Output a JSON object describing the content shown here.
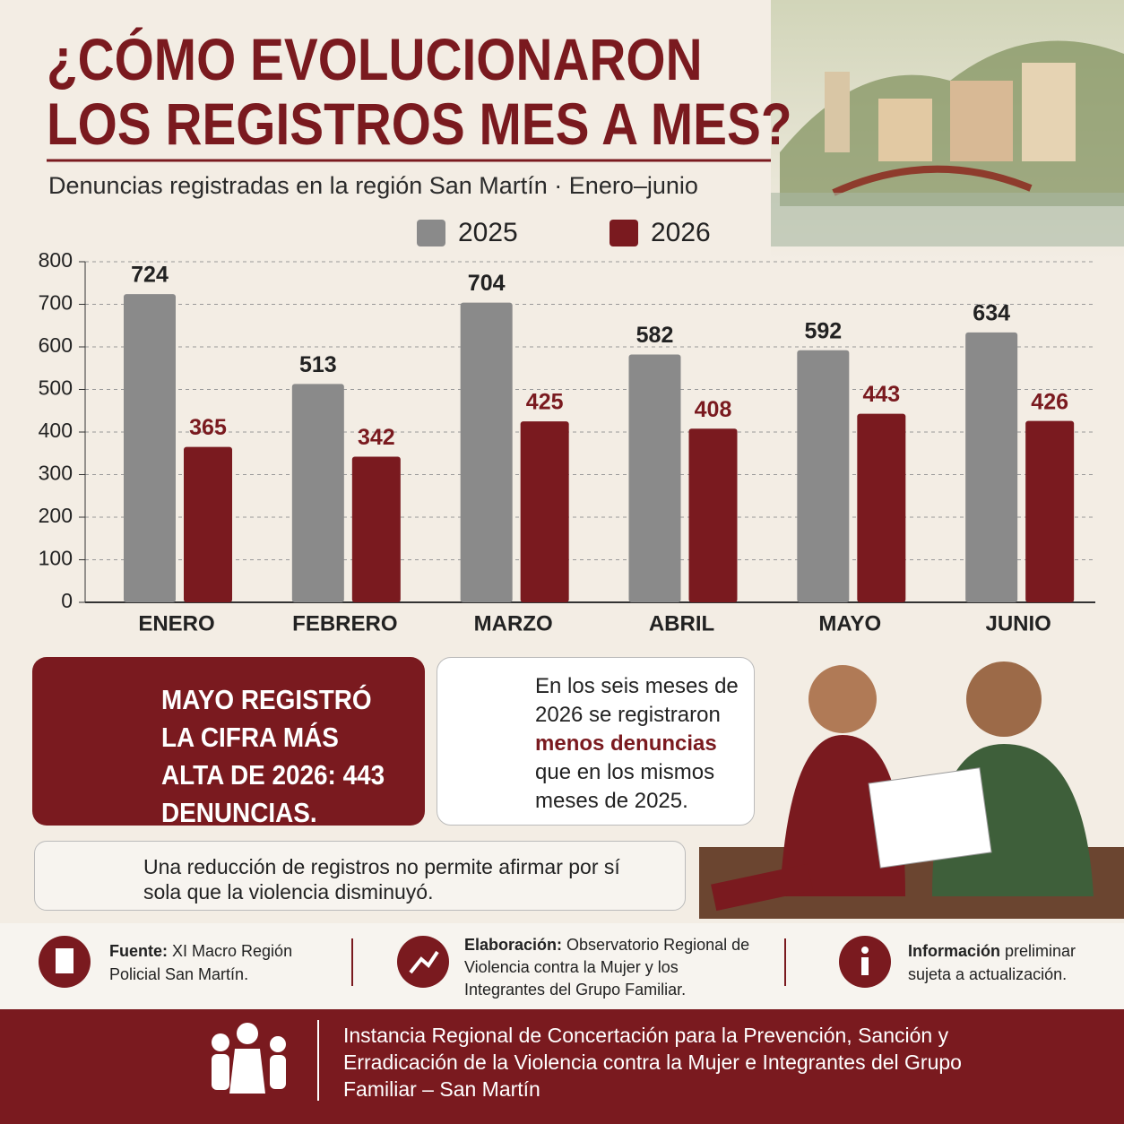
{
  "chart_data": {
    "type": "bar",
    "title": [
      "¿CÓMO EVOLUCIONARON",
      "LOS REGISTROS MES A MES?"
    ],
    "subtitle": "Denuncias registradas en la región San Martín · Enero–junio",
    "categories": [
      "ENERO",
      "FEBRERO",
      "MARZO",
      "ABRIL",
      "MAYO",
      "JUNIO"
    ],
    "series": [
      {
        "name": "2025",
        "color": "#8a8a8a",
        "values": [
          724,
          513,
          704,
          582,
          592,
          634
        ]
      },
      {
        "name": "2026",
        "color": "#7a1a1f",
        "values": [
          365,
          342,
          425,
          408,
          443,
          426
        ]
      }
    ],
    "ylim": [
      0,
      800
    ],
    "yticks": [
      0,
      100,
      200,
      300,
      400,
      500,
      600,
      700,
      800
    ],
    "grid": true
  },
  "callouts": [
    {
      "text": "MAYO REGISTRÓ LA CIFRA MÁS ALTA DE 2026: 443 DENUNCIAS."
    },
    {
      "parts": [
        "En los seis meses de 2026 se registraron ",
        "menos denuncias",
        " que en los mismos meses de 2025."
      ]
    },
    {
      "text": "Una reducción de registros no permite afirmar por sí sola que la violencia disminuyó."
    }
  ],
  "footer": [
    {
      "label": "Fuente:",
      "text": "XI Macro Región Policial San Martín."
    },
    {
      "label": "Elaboración:",
      "text": "Observatorio Regional de Violencia contra la Mujer y los Integrantes del Grupo Familiar."
    },
    {
      "label": "Información",
      "text": "preliminar sujeta a actualización."
    }
  ],
  "institution": "Instancia Regional de Concertación para la Prevención, Sanción y Erradicación de la Violencia contra la Mujer e Integrantes del Grupo Familiar – San Martín"
}
